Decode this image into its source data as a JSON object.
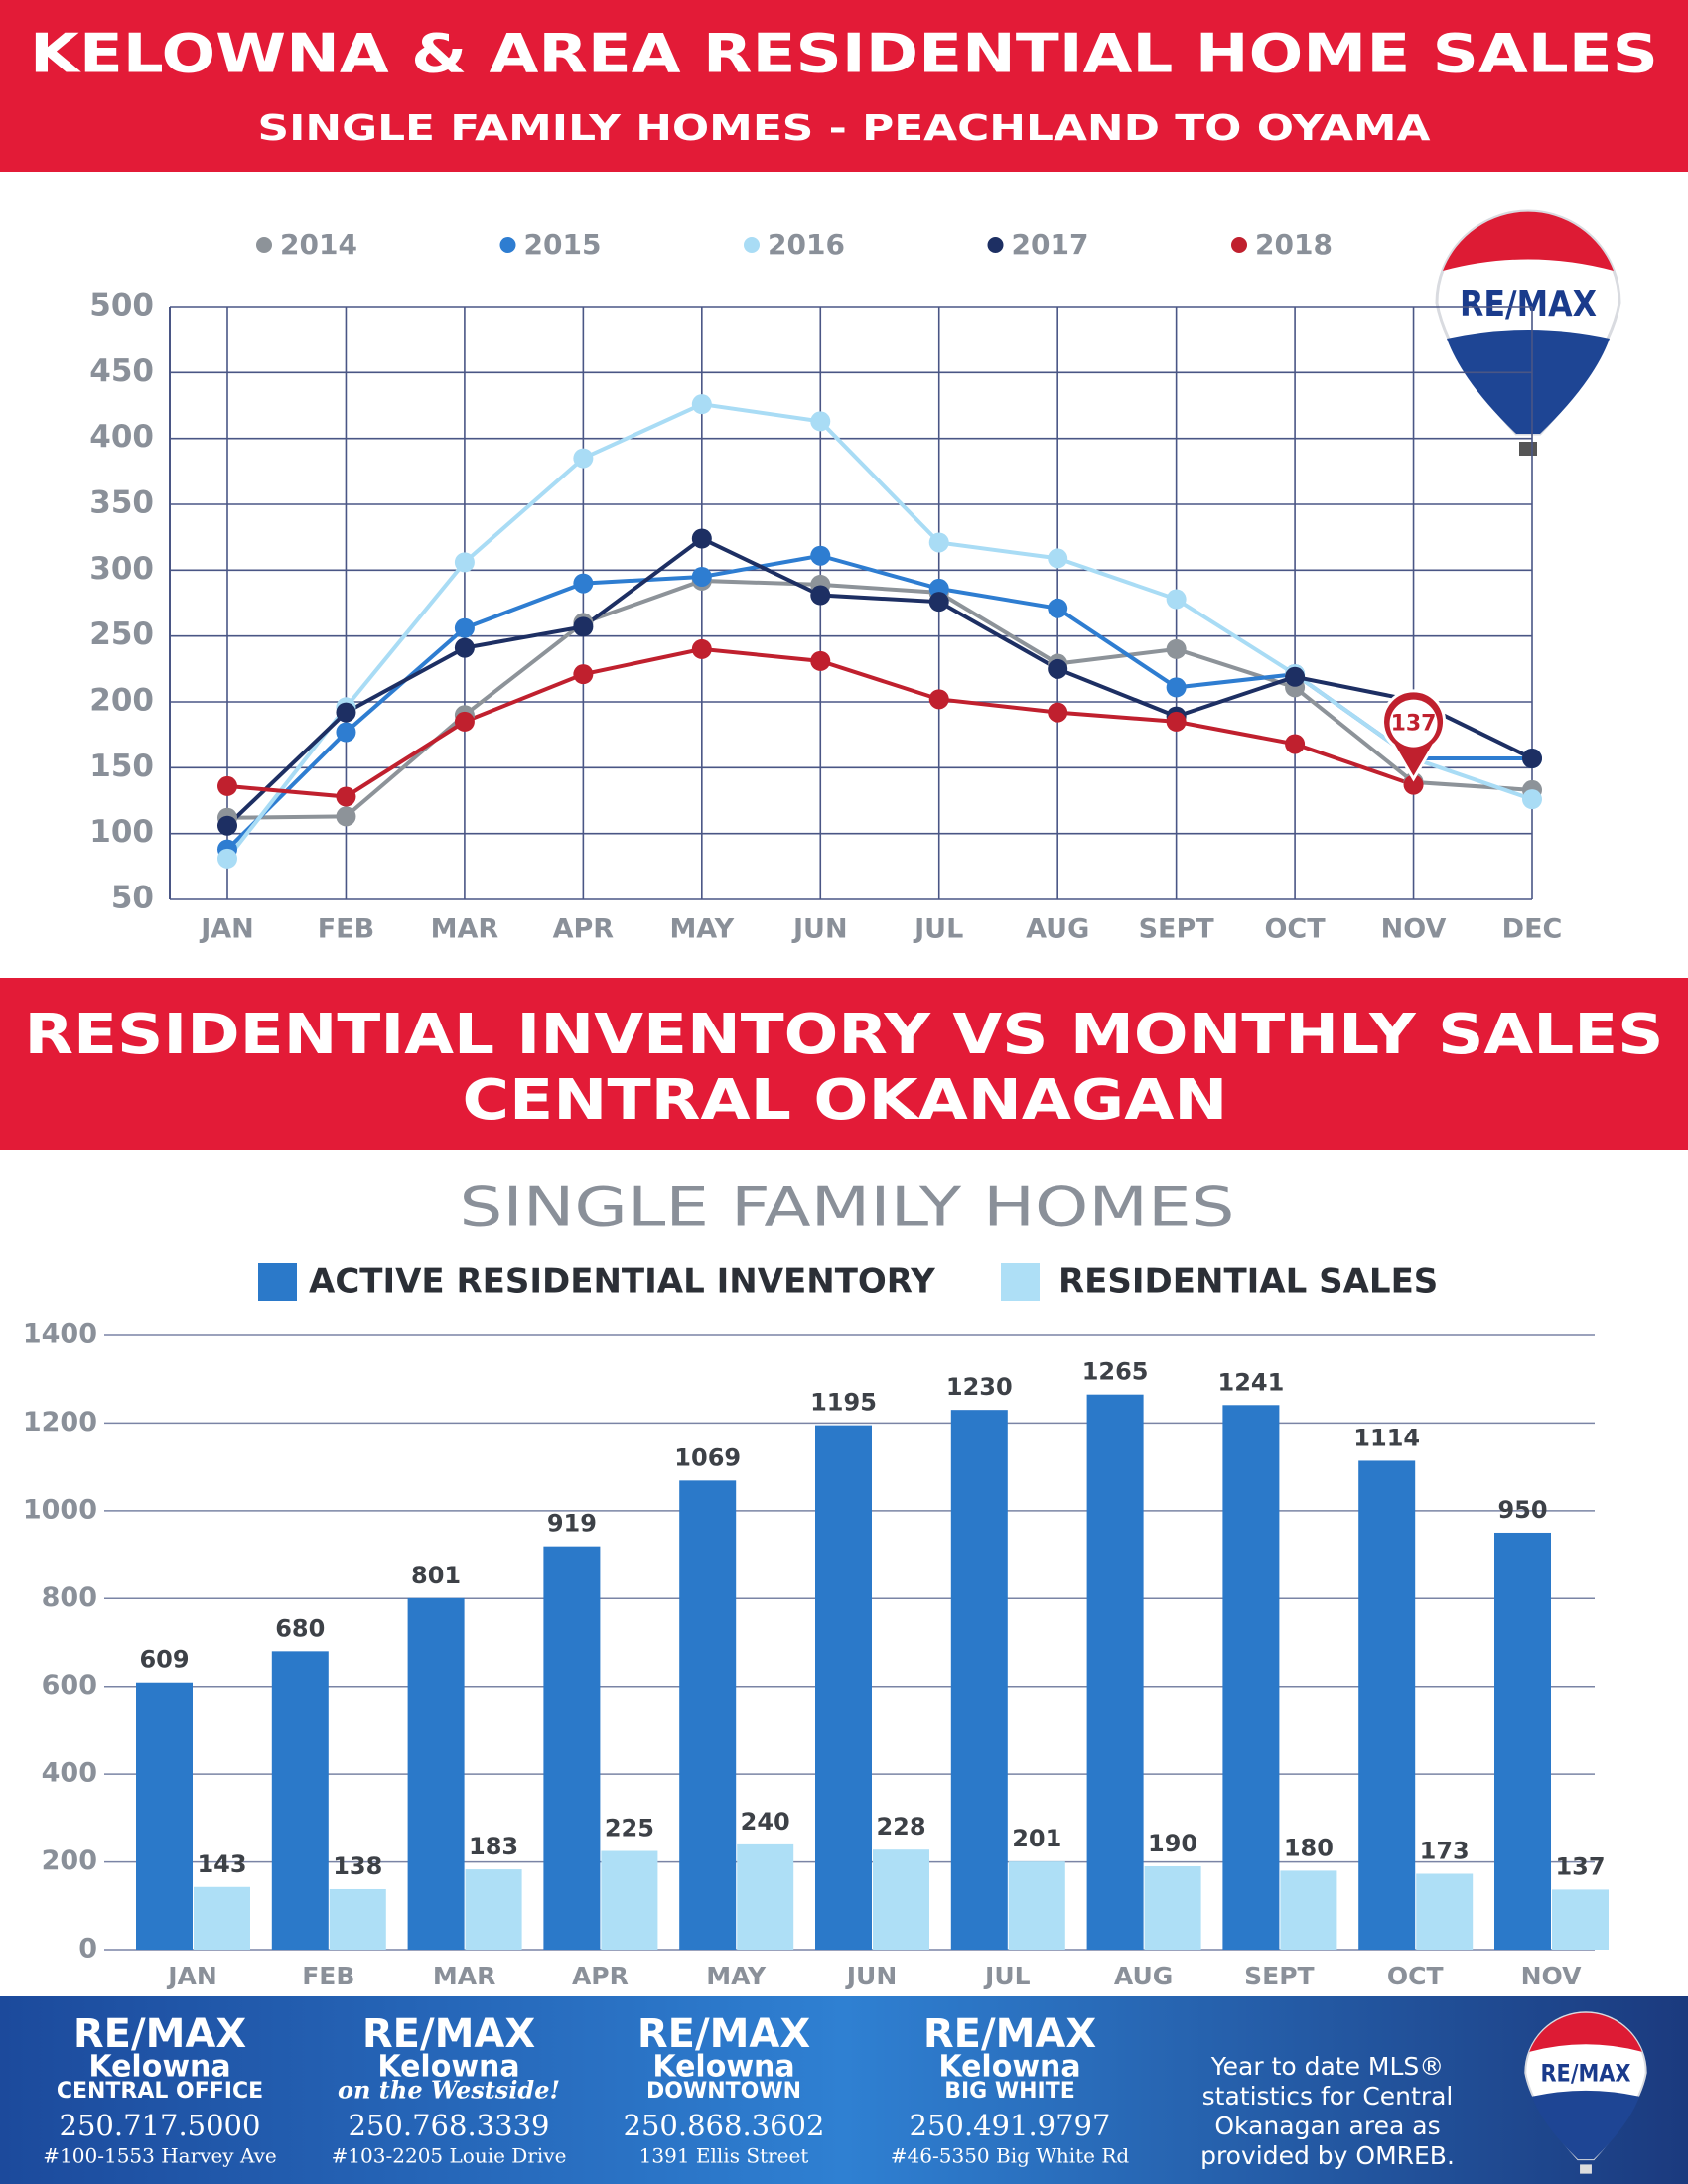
{
  "header": {
    "title": "KELOWNA & AREA RESIDENTIAL HOME SALES",
    "subtitle": "SINGLE FAMILY HOMES - PEACHLAND TO OYAMA"
  },
  "section2": {
    "title_lines": [
      "RESIDENTIAL INVENTORY VS MONTHLY SALES",
      "CENTRAL OKANAGAN"
    ]
  },
  "logo_text": "RE/MAX",
  "chart_data": [
    {
      "type": "line",
      "categories": [
        "JAN",
        "FEB",
        "MAR",
        "APR",
        "MAY",
        "JUN",
        "JUL",
        "AUG",
        "SEPT",
        "OCT",
        "NOV",
        "DEC"
      ],
      "ylim": [
        50,
        500
      ],
      "yticks": [
        50,
        100,
        150,
        200,
        250,
        300,
        350,
        400,
        450,
        500
      ],
      "grid": true,
      "series": [
        {
          "name": "2014",
          "color": "#8d9399",
          "values": [
            112,
            113,
            190,
            260,
            292,
            289,
            283,
            229,
            240,
            211,
            139,
            133
          ]
        },
        {
          "name": "2015",
          "color": "#2e7dd1",
          "values": [
            88,
            177,
            256,
            290,
            295,
            311,
            286,
            271,
            211,
            221,
            157,
            157
          ]
        },
        {
          "name": "2016",
          "color": "#a9dcf5",
          "values": [
            81,
            196,
            306,
            385,
            426,
            413,
            321,
            309,
            278,
            221,
            157,
            126
          ]
        },
        {
          "name": "2017",
          "color": "#1d2f63",
          "values": [
            106,
            192,
            241,
            257,
            324,
            281,
            276,
            225,
            189,
            219,
            201,
            157
          ]
        },
        {
          "name": "2018",
          "color": "#c0202e",
          "values": [
            136,
            128,
            185,
            221,
            240,
            231,
            202,
            192,
            185,
            168,
            137,
            null
          ],
          "label_last": true
        }
      ]
    },
    {
      "type": "bar",
      "title": "SINGLE FAMILY HOMES",
      "categories": [
        "JAN",
        "FEB",
        "MAR",
        "APR",
        "MAY",
        "JUN",
        "JUL",
        "AUG",
        "SEPT",
        "OCT",
        "NOV"
      ],
      "ylim": [
        0,
        1400
      ],
      "yticks": [
        0,
        200,
        400,
        600,
        800,
        1000,
        1200,
        1400
      ],
      "grid": true,
      "series": [
        {
          "name": "ACTIVE RESIDENTIAL INVENTORY",
          "color": "#2b79c9",
          "values": [
            609,
            680,
            801,
            919,
            1069,
            1195,
            1230,
            1265,
            1241,
            1114,
            950
          ]
        },
        {
          "name": "RESIDENTIAL SALES",
          "color": "#aedff6",
          "values": [
            143,
            138,
            183,
            225,
            240,
            228,
            201,
            190,
            180,
            173,
            137
          ]
        }
      ]
    }
  ],
  "footer": {
    "offices": [
      {
        "brand": "RE/MAX",
        "city": "Kelowna",
        "branch": "CENTRAL OFFICE",
        "phone": "250.717.5000",
        "address": "#100-1553 Harvey Ave"
      },
      {
        "brand": "RE/MAX",
        "city": "Kelowna",
        "branch": "on the Westside!",
        "phone": "250.768.3339",
        "address": "#103-2205 Louie Drive"
      },
      {
        "brand": "RE/MAX",
        "city": "Kelowna",
        "branch": "DOWNTOWN",
        "phone": "250.868.3602",
        "address": "1391 Ellis Street"
      },
      {
        "brand": "RE/MAX",
        "city": "Kelowna",
        "branch": "BIG WHITE",
        "phone": "250.491.9797",
        "address": "#46-5350 Big White Rd"
      }
    ],
    "note_lines": [
      "Year to date MLS®",
      "statistics for Central",
      "Okanagan area as",
      "provided by OMREB."
    ]
  }
}
